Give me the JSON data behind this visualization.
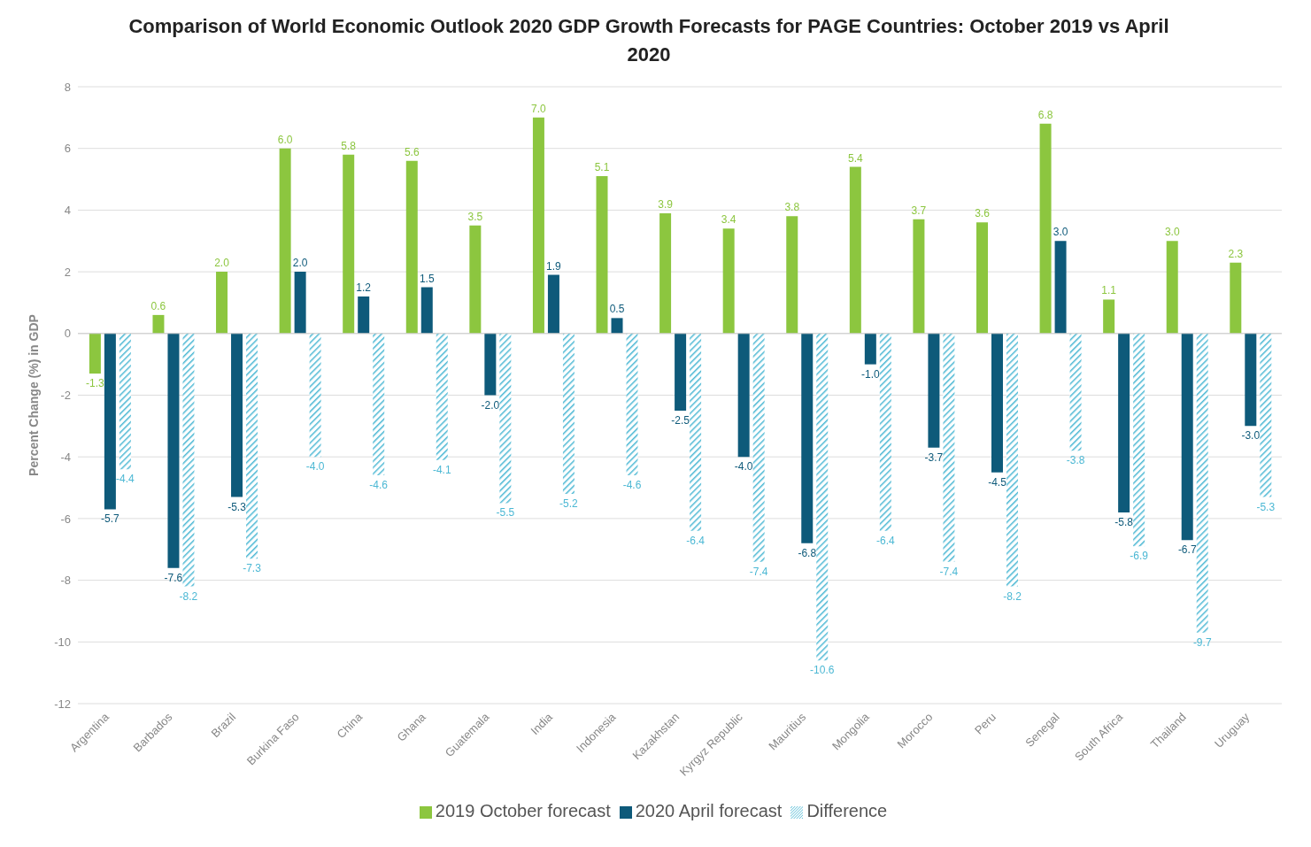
{
  "chart_data": {
    "type": "bar",
    "title": "Comparison of World Economic Outlook 2020 GDP Growth Forecasts for PAGE Countries: October 2019 vs April 2020",
    "ylabel": "Percent Change (%) in GDP",
    "categories": [
      "Argentina",
      "Barbados",
      "Brazil",
      "Burkina Faso",
      "China",
      "Ghana",
      "Guatemala",
      "India",
      "Indonesia",
      "Kazakhstan",
      "Kyrgyz Republic",
      "Mauritius",
      "Mongolia",
      "Morocco",
      "Peru",
      "Senegal",
      "South Africa",
      "Thailand",
      "Uruguay"
    ],
    "series": [
      {
        "name": "2019 October forecast",
        "color": "#8cc63f",
        "values": [
          -1.3,
          0.6,
          2.0,
          6.0,
          5.8,
          5.6,
          3.5,
          7.0,
          5.1,
          3.9,
          3.4,
          3.8,
          5.4,
          3.7,
          3.6,
          6.8,
          1.1,
          3.0,
          2.3
        ],
        "value_labels": [
          "-1.3",
          "0.6",
          "2.0",
          "6.0",
          "5.8",
          "5.6",
          "3.5",
          "7.0",
          "5.1",
          "3.9",
          "3.4",
          "3.8",
          "5.4",
          "3.7",
          "3.6",
          "6.8",
          "1.1",
          "3.0",
          "2.3"
        ]
      },
      {
        "name": "2020 April forecast",
        "color": "#0e5a7a",
        "values": [
          -5.7,
          -7.6,
          -5.3,
          2.0,
          1.2,
          1.5,
          -2.0,
          1.9,
          0.5,
          -2.5,
          -4.0,
          -6.8,
          -1.0,
          -3.7,
          -4.5,
          3.0,
          -5.8,
          -6.7,
          -3.0
        ],
        "value_labels": [
          "-5.7",
          "-7.6",
          "-5.3",
          "2.0",
          "1.2",
          "1.5",
          "-2.0",
          "1.9",
          "0.5",
          "-2.5",
          "-4.0",
          "-6.8",
          "-1.0",
          "-3.7",
          "-4.5",
          "3.0",
          "-5.8",
          "-6.7",
          "-3.0"
        ]
      },
      {
        "name": "Difference",
        "color": "#4cb8d4",
        "values": [
          -4.4,
          -8.2,
          -7.3,
          -4.0,
          -4.6,
          -4.1,
          -5.5,
          -5.2,
          -4.6,
          -6.4,
          -7.4,
          -10.6,
          -6.4,
          -7.4,
          -8.2,
          -3.8,
          -6.9,
          -9.7,
          -5.3
        ],
        "value_labels": [
          "-4.4",
          "-8.2",
          "-7.3",
          "-4.0",
          "-4.6",
          "-4.1",
          "-5.5",
          "-5.2",
          "-4.6",
          "-6.4",
          "-7.4",
          "-10.6",
          "-6.4",
          "-7.4",
          "-8.2",
          "-3.8",
          "-6.9",
          "-9.7",
          "-5.3"
        ]
      }
    ],
    "ylim": [
      -12,
      8
    ],
    "yticks": [
      -12,
      -10,
      -8,
      -6,
      -4,
      -2,
      0,
      2,
      4,
      6,
      8
    ],
    "grid": "y",
    "legend": "bottom"
  }
}
